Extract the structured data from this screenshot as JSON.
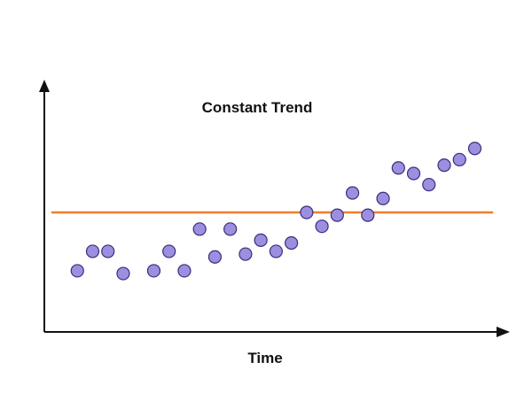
{
  "chart_data": {
    "type": "scatter",
    "title": "Constant Trend",
    "xlabel": "Time",
    "ylabel": "",
    "xlim": [
      0,
      30
    ],
    "ylim": [
      0,
      100
    ],
    "grid": false,
    "legend": "none",
    "series": [
      {
        "points": [
          {
            "x": 1,
            "y": 22
          },
          {
            "x": 2,
            "y": 29
          },
          {
            "x": 3,
            "y": 29
          },
          {
            "x": 4,
            "y": 21
          },
          {
            "x": 6,
            "y": 22
          },
          {
            "x": 7,
            "y": 29
          },
          {
            "x": 8,
            "y": 22
          },
          {
            "x": 9,
            "y": 37
          },
          {
            "x": 10,
            "y": 27
          },
          {
            "x": 11,
            "y": 37
          },
          {
            "x": 12,
            "y": 28
          },
          {
            "x": 13,
            "y": 33
          },
          {
            "x": 14,
            "y": 29
          },
          {
            "x": 15,
            "y": 32
          },
          {
            "x": 16,
            "y": 43
          },
          {
            "x": 17,
            "y": 38
          },
          {
            "x": 18,
            "y": 42
          },
          {
            "x": 19,
            "y": 50
          },
          {
            "x": 20,
            "y": 42
          },
          {
            "x": 21,
            "y": 48
          },
          {
            "x": 22,
            "y": 59
          },
          {
            "x": 23,
            "y": 57
          },
          {
            "x": 24,
            "y": 53
          },
          {
            "x": 25,
            "y": 60
          },
          {
            "x": 26,
            "y": 62
          },
          {
            "x": 27,
            "y": 66
          }
        ],
        "color": "#9b8fe0",
        "stroke": "#3a2f7a"
      }
    ],
    "trend_line": {
      "x": [
        -0.7,
        28.2
      ],
      "y": [
        43,
        43
      ],
      "color": "#ee7d2e"
    },
    "axis_color": "#111111"
  }
}
